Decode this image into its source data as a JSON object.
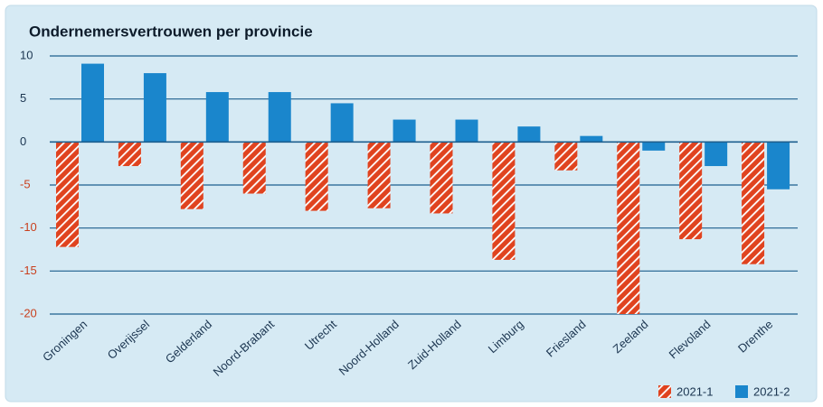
{
  "chart_data": {
    "type": "bar",
    "title": "Ondernemersvertrouwen per provincie",
    "categories": [
      "Groningen",
      "Overijssel",
      "Gelderland",
      "Noord-Brabant",
      "Utrecht",
      "Noord-Holland",
      "Zuid-Holland",
      "Limburg",
      "Friesland",
      "Zeeland",
      "Flevoland",
      "Drenthe"
    ],
    "series": [
      {
        "name": "2021-1",
        "color": "#e0431f",
        "hatch": true,
        "values": [
          -12.2,
          -2.8,
          -7.8,
          -6.0,
          -8.0,
          -7.7,
          -8.3,
          -13.7,
          -3.3,
          -20.0,
          -11.3,
          -14.2
        ]
      },
      {
        "name": "2021-2",
        "color": "#1a86cc",
        "hatch": false,
        "values": [
          9.1,
          8.0,
          5.8,
          5.8,
          4.5,
          2.6,
          2.6,
          1.8,
          0.7,
          -1.0,
          -2.8,
          -5.5
        ]
      }
    ],
    "ylim": [
      -20,
      10
    ],
    "yticks": [
      -20,
      -15,
      -10,
      -5,
      0,
      5,
      10
    ],
    "grid": true,
    "legend": "bottom-right"
  }
}
